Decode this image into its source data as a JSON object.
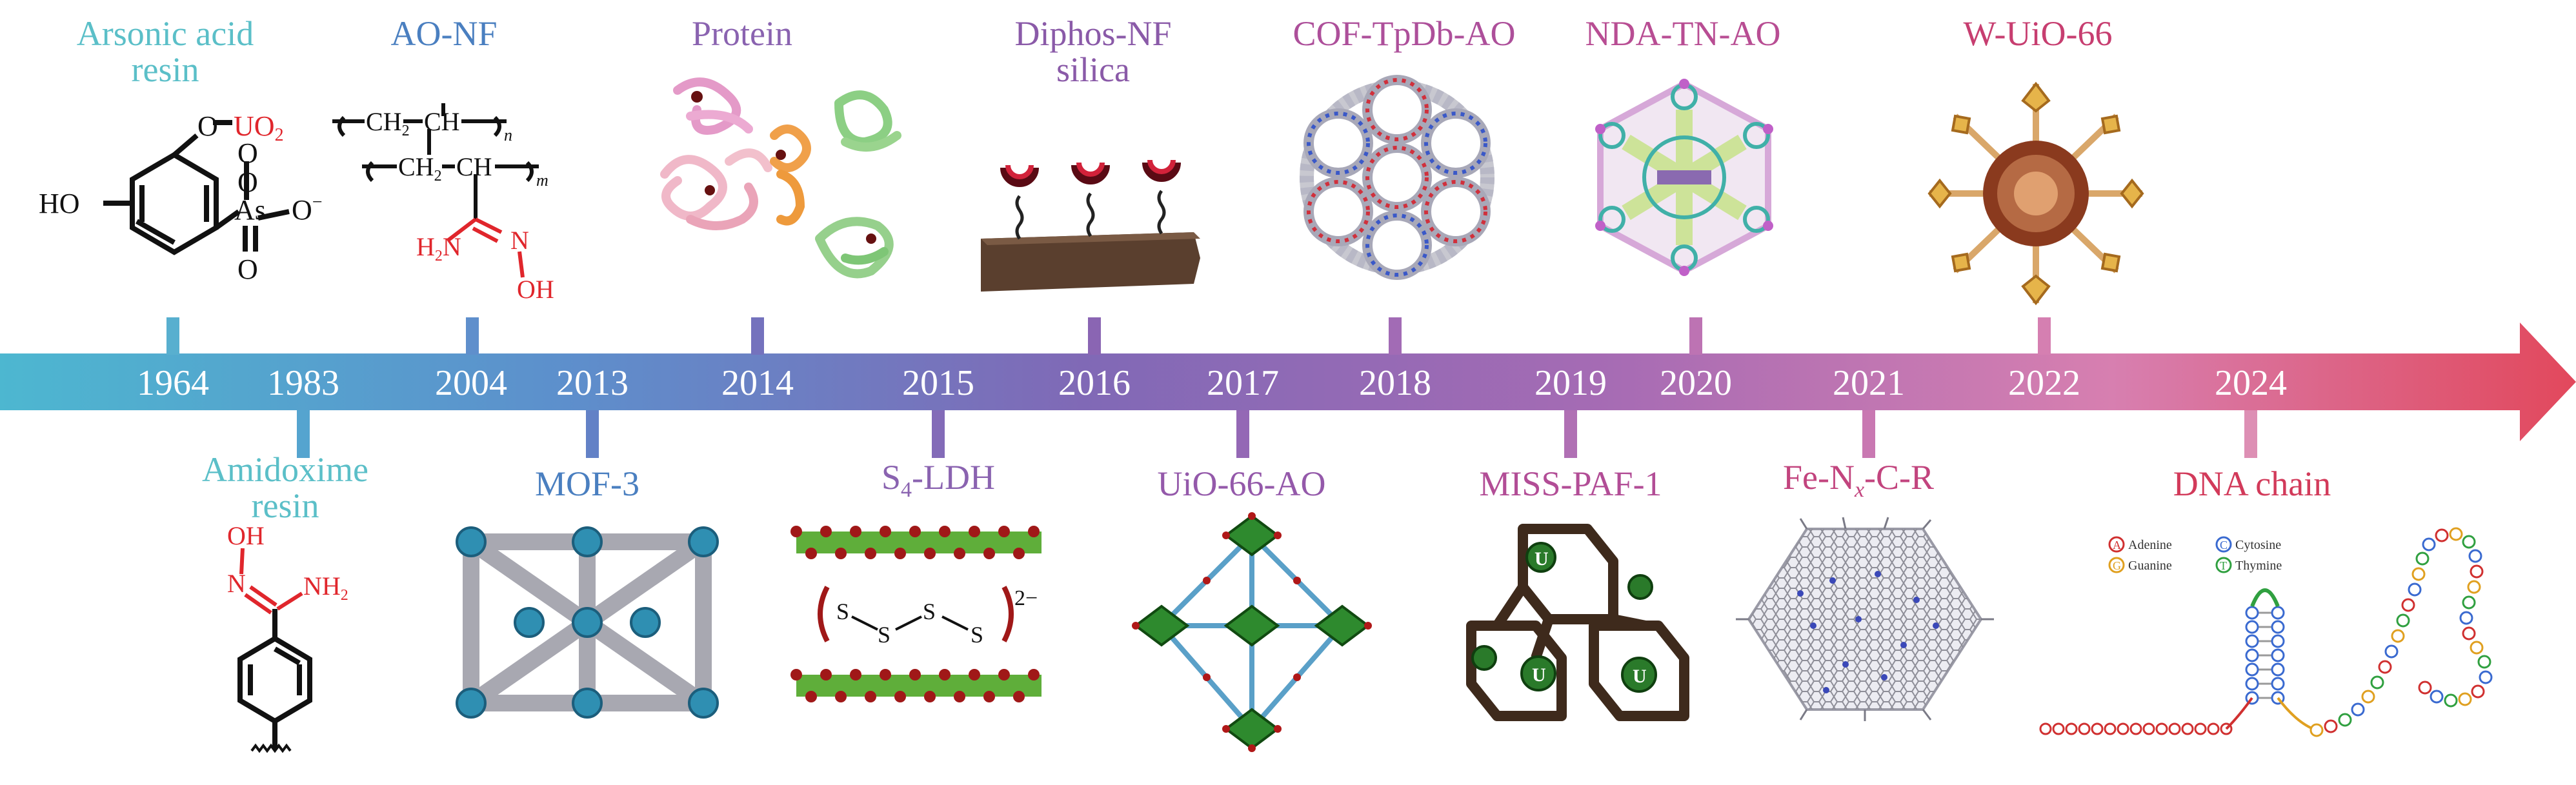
{
  "timeline": {
    "years": [
      "1964",
      "1983",
      "2004",
      "2013",
      "2014",
      "2015",
      "2016",
      "2017",
      "2018",
      "2019",
      "2020",
      "2021",
      "2022",
      "2024"
    ]
  },
  "labels": {
    "arsonic_acid_resin": "Arsonic acid\nresin",
    "ao_nf": "AO-NF",
    "protein": "Protein",
    "diphos_nf_silica": "Diphos-NF\nsilica",
    "cof_tpdb_ao": "COF-TpDb-AO",
    "nda_tn_ao": "NDA-TN-AO",
    "w_uio_66": "W-UiO-66",
    "amidoxime_resin": "Amidoxime\nresin",
    "mof_3": "MOF-3",
    "s4_ldh_main": "S",
    "s4_ldh_sub": "4",
    "s4_ldh_rest": "-LDH",
    "uio_66_ao": "UiO-66-AO",
    "miss_paf_1": "MISS-PAF-1",
    "fe_nx_main": "Fe-N",
    "fe_nx_sub": "x",
    "fe_nx_rest": "-C-R",
    "dna_chain": "DNA chain"
  },
  "chem": {
    "ho": "HO",
    "o": "O",
    "uo2": "UO",
    "uo2_sub": "2",
    "as": "As",
    "o_minus": "O",
    "ch2": "CH",
    "ch": "CH",
    "n_sub": "n",
    "m_sub": "m",
    "h2n": "H",
    "n": "N",
    "oh": "OH",
    "nh2": "NH",
    "s": "S",
    "charge": "2−",
    "u": "U"
  },
  "dna_legend": [
    "Adenine",
    "Cytosine",
    "Guanine",
    "Thymine"
  ],
  "dna_legend_letters": [
    "A",
    "C",
    "G",
    "T"
  ],
  "colors": {
    "arrow_start": "#4fb6cf",
    "arrow_mid": "#8a6cb5",
    "arrow_end": "#e0485f",
    "label_cyan": "#5bbfc8",
    "label_blue": "#4a7fc0",
    "label_purple": "#8a63b0",
    "label_magenta": "#b0468f",
    "label_red": "#d23a5a",
    "chem_red": "#e0262c"
  }
}
